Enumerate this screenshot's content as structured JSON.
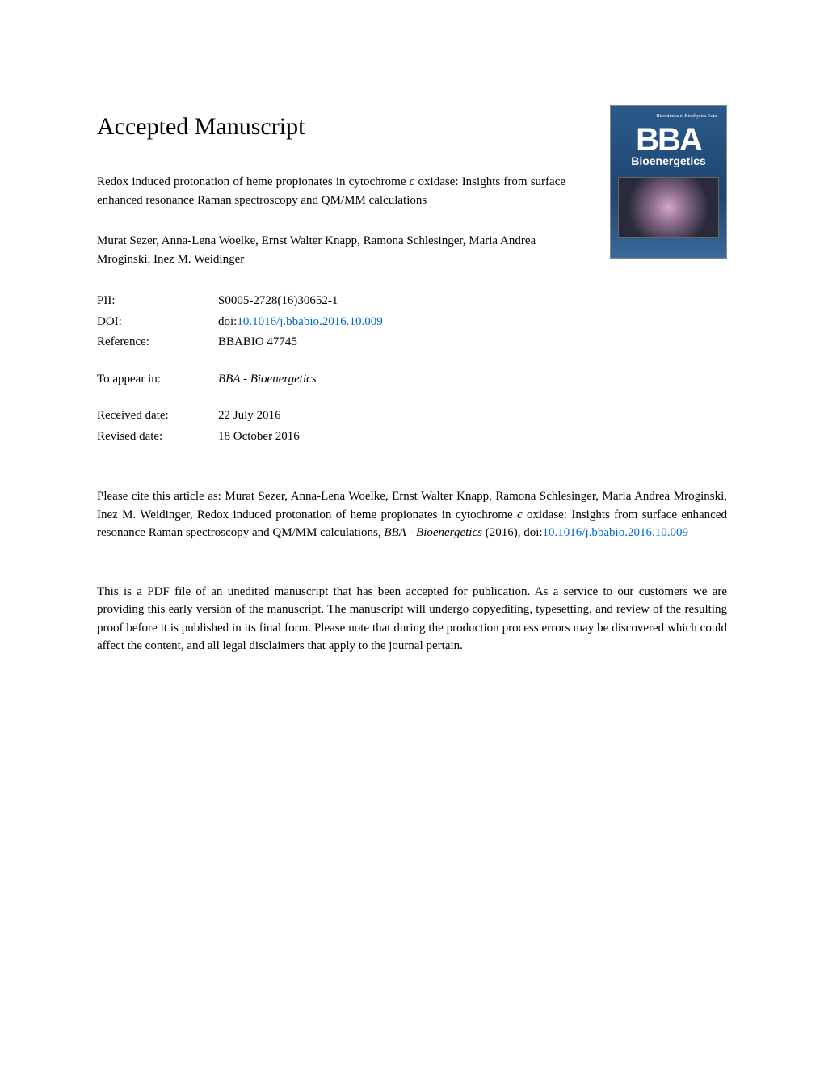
{
  "heading": "Accepted Manuscript",
  "cover": {
    "top_text": "Biochimica et Biophysica Acta",
    "bba": "BBA",
    "subtitle": "Bioenergetics"
  },
  "title_pre": "Redox induced protonation of heme propionates in cytochrome ",
  "title_italic": "c",
  "title_post": " oxidase: Insights from surface enhanced resonance Raman spectroscopy and QM/MM calculations",
  "authors": "Murat Sezer, Anna-Lena Woelke, Ernst Walter Knapp, Ramona Schlesinger, Maria Andrea Mroginski, Inez M. Weidinger",
  "meta": {
    "pii_label": "PII:",
    "pii_value": "S0005-2728(16)30652-1",
    "doi_label": "DOI:",
    "doi_prefix": "doi:",
    "doi_link": "10.1016/j.bbabio.2016.10.009",
    "ref_label": "Reference:",
    "ref_value": "BBABIO 47745",
    "appear_label": "To appear in:",
    "appear_value": "BBA - Bioenergetics",
    "received_label": "Received date:",
    "received_value": "22 July 2016",
    "revised_label": "Revised date:",
    "revised_value": "18 October 2016"
  },
  "citation_pre": "Please cite this article as: Murat Sezer, Anna-Lena Woelke, Ernst Walter Knapp, Ramona Schlesinger, Maria Andrea Mroginski, Inez M. Weidinger, Redox induced protonation of heme propionates in cytochrome ",
  "citation_italic1": "c",
  "citation_mid": " oxidase: Insights from surface enhanced resonance Raman spectroscopy and QM/MM calculations, ",
  "citation_italic2": "BBA - Bioenergetics",
  "citation_post": " (2016), doi:",
  "citation_link": "10.1016/j.bbabio.2016.10.009",
  "disclaimer": "This is a PDF file of an unedited manuscript that has been accepted for publication. As a service to our customers we are providing this early version of the manuscript. The manuscript will undergo copyediting, typesetting, and review of the resulting proof before it is published in its final form. Please note that during the production process errors may be discovered which could affect the content, and all legal disclaimers that apply to the journal pertain.",
  "colors": {
    "text": "#000000",
    "link": "#0066cc",
    "background": "#ffffff",
    "cover_bg": "#2a5a8a"
  },
  "typography": {
    "heading_size": 30,
    "body_size": 15,
    "font_family": "Georgia, Times New Roman, serif"
  }
}
